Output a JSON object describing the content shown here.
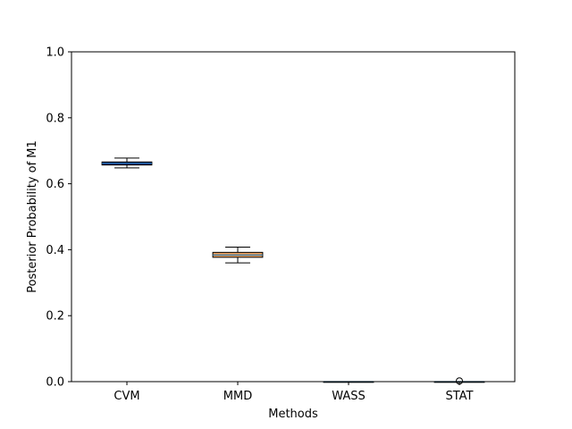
{
  "chart_data": {
    "type": "boxplot",
    "title": "",
    "xlabel": "Methods",
    "ylabel": "Posterior Probability of M1",
    "ylim": [
      0,
      1.0
    ],
    "yticks": [
      0.0,
      0.2,
      0.4,
      0.6,
      0.8,
      1.0
    ],
    "ytick_labels": [
      "0.0",
      "0.2",
      "0.4",
      "0.6",
      "0.8",
      "1.0"
    ],
    "grid": false,
    "categories": [
      "CVM",
      "MMD",
      "WASS",
      "STAT"
    ],
    "boxes": [
      {
        "category": "CVM",
        "whisker_low": 0.648,
        "q1": 0.657,
        "median": 0.662,
        "q3": 0.666,
        "whisker_high": 0.678,
        "fill": "#1b1b6b",
        "outliers": []
      },
      {
        "category": "MMD",
        "whisker_low": 0.36,
        "q1": 0.377,
        "median": 0.384,
        "q3": 0.392,
        "whisker_high": 0.408,
        "fill": "#e8a060",
        "outliers": []
      },
      {
        "category": "WASS",
        "whisker_low": 0.0,
        "q1": 0.0,
        "median": 0.0,
        "q3": 0.0,
        "whisker_high": 0.0,
        "fill": "#66aa66",
        "outliers": []
      },
      {
        "category": "STAT",
        "whisker_low": 0.0,
        "q1": 0.0,
        "median": 0.0,
        "q3": 0.0,
        "whisker_high": 0.0,
        "fill": "#aa66aa",
        "outliers": [
          0.002
        ]
      }
    ],
    "colors": {
      "median_line": "#1f77b4",
      "frame": "#000000"
    }
  }
}
